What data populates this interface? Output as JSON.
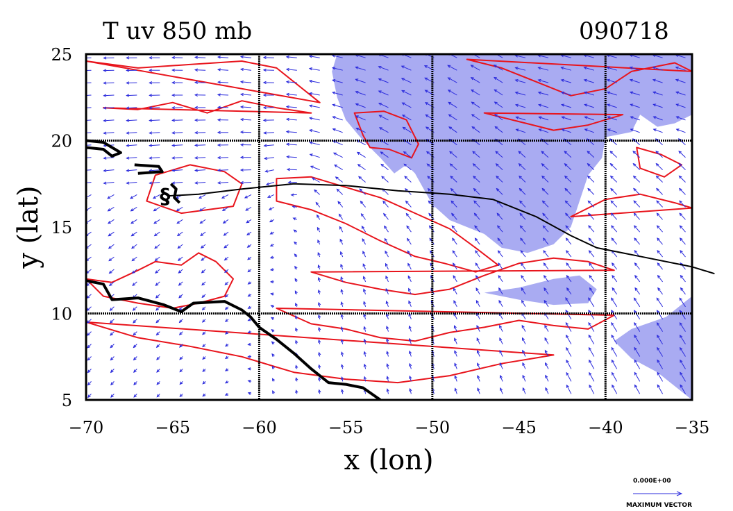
{
  "chart_data": {
    "type": "contour-vector-map",
    "title": "T uv 850 mb",
    "date_label": "090718",
    "xlabel": "x (lon)",
    "ylabel": "y (lat)",
    "xlim": [
      -70,
      -35
    ],
    "ylim": [
      5,
      25
    ],
    "x_ticks": [
      -70,
      -65,
      -60,
      -55,
      -50,
      -45,
      -40,
      -35
    ],
    "x_tick_labels": [
      "−70",
      "−65",
      "−60",
      "−55",
      "−50",
      "−45",
      "−40",
      "−35"
    ],
    "y_ticks": [
      5,
      10,
      15,
      20,
      25
    ],
    "y_tick_labels": [
      "5",
      "10",
      "15",
      "20",
      "25"
    ],
    "grid_x": [
      -60,
      -50,
      -40
    ],
    "grid_y": [
      10,
      20
    ],
    "grid": true,
    "vector_legend": {
      "value_label": "0.000E+00",
      "caption": "MAXIMUM VECTOR"
    },
    "colors": {
      "shaded_region": "#a9abf2",
      "contour": "#e8141c",
      "vector": "#2a2adc",
      "coastline": "#000000",
      "storm_track": "#000000"
    },
    "shaded_regions": [
      [
        [
          -55.5,
          25
        ],
        [
          -35,
          25
        ],
        [
          -35,
          21.5
        ],
        [
          -36,
          21
        ],
        [
          -37,
          20.8
        ],
        [
          -38,
          21.5
        ],
        [
          -38.5,
          20.5
        ],
        [
          -40,
          20.2
        ],
        [
          -40.2,
          19
        ],
        [
          -41,
          18
        ],
        [
          -41.5,
          16.5
        ],
        [
          -42,
          15
        ],
        [
          -43,
          14
        ],
        [
          -44.5,
          13.5
        ],
        [
          -46,
          13.8
        ],
        [
          -47,
          14.6
        ],
        [
          -48,
          15
        ],
        [
          -49,
          15.4
        ],
        [
          -50,
          16.3
        ],
        [
          -51,
          18.1
        ],
        [
          -51.5,
          18.6
        ],
        [
          -52.2,
          18.1
        ],
        [
          -53,
          19
        ],
        [
          -54,
          20
        ],
        [
          -55,
          21.2
        ],
        [
          -55.5,
          22.5
        ],
        [
          -55.8,
          24
        ]
      ],
      [
        [
          -47,
          11.2
        ],
        [
          -45,
          11.5
        ],
        [
          -43,
          12
        ],
        [
          -41.5,
          12.2
        ],
        [
          -40.5,
          11.4
        ],
        [
          -41,
          10.6
        ],
        [
          -43,
          10.5
        ],
        [
          -45,
          10.8
        ]
      ],
      [
        [
          -35,
          11
        ],
        [
          -36.5,
          9.8
        ],
        [
          -38.5,
          9.1
        ],
        [
          -39.5,
          8.4
        ],
        [
          -38.5,
          7.4
        ],
        [
          -37,
          6.6
        ],
        [
          -35,
          5
        ]
      ]
    ],
    "contours": [
      [
        [
          -70,
          12
        ],
        [
          -68.5,
          11.8
        ],
        [
          -67,
          12.5
        ],
        [
          -66,
          13
        ],
        [
          -64.5,
          12.8
        ],
        [
          -63.5,
          13.5
        ],
        [
          -62.5,
          13
        ],
        [
          -61.5,
          12
        ],
        [
          -62,
          11
        ],
        [
          -63.5,
          10.6
        ],
        [
          -65,
          10.3
        ],
        [
          -67,
          10.6
        ],
        [
          -69,
          11
        ]
      ],
      [
        [
          -66,
          18
        ],
        [
          -64,
          18.6
        ],
        [
          -62,
          18.2
        ],
        [
          -61,
          17.5
        ],
        [
          -61.5,
          16.2
        ],
        [
          -63,
          16
        ],
        [
          -64.5,
          15.8
        ],
        [
          -66.5,
          16.5
        ]
      ],
      [
        [
          -59,
          17.8
        ],
        [
          -57,
          17.9
        ],
        [
          -55,
          17.3
        ],
        [
          -53,
          16.7
        ],
        [
          -51,
          15.8
        ],
        [
          -49,
          14.9
        ],
        [
          -47.5,
          13.8
        ],
        [
          -46.2,
          12.8
        ],
        [
          -47.5,
          12.4
        ],
        [
          -49.3,
          12.9
        ],
        [
          -51,
          13.3
        ],
        [
          -53,
          14.2
        ],
        [
          -55,
          15.2
        ],
        [
          -57,
          16
        ],
        [
          -59,
          16.5
        ]
      ],
      [
        [
          -70,
          24.6
        ],
        [
          -67,
          24.2
        ],
        [
          -64,
          24.4
        ],
        [
          -61,
          24.6
        ],
        [
          -59,
          24.2
        ],
        [
          -58,
          23.4
        ],
        [
          -56.5,
          22.2
        ]
      ],
      [
        [
          -48,
          24.7
        ],
        [
          -46,
          24.2
        ],
        [
          -44,
          23.4
        ],
        [
          -42,
          22.6
        ],
        [
          -40,
          23
        ],
        [
          -38.5,
          24
        ],
        [
          -36,
          24.5
        ],
        [
          -35,
          24
        ]
      ],
      [
        [
          -54.5,
          21.6
        ],
        [
          -54,
          20.3
        ],
        [
          -53.6,
          19.6
        ],
        [
          -52.5,
          19.5
        ],
        [
          -51.2,
          19
        ],
        [
          -50.8,
          19.8
        ],
        [
          -51.5,
          21.2
        ],
        [
          -52.8,
          21.7
        ]
      ],
      [
        [
          -57,
          12.4
        ],
        [
          -55,
          11.8
        ],
        [
          -53,
          11.4
        ],
        [
          -51,
          11.1
        ],
        [
          -49,
          11.4
        ],
        [
          -47,
          12.2
        ],
        [
          -45,
          12.9
        ],
        [
          -43,
          13.2
        ],
        [
          -41,
          13
        ],
        [
          -39.5,
          12.5
        ]
      ],
      [
        [
          -70,
          9.5
        ],
        [
          -67,
          8.6
        ],
        [
          -64,
          8.1
        ],
        [
          -61,
          7.5
        ],
        [
          -58,
          6.6
        ],
        [
          -55,
          6.2
        ],
        [
          -52,
          6
        ],
        [
          -49,
          6.4
        ],
        [
          -46,
          7.1
        ],
        [
          -43,
          7.6
        ]
      ],
      [
        [
          -59,
          10.3
        ],
        [
          -57,
          9.4
        ],
        [
          -55,
          9.1
        ],
        [
          -53,
          8.6
        ],
        [
          -51,
          8.4
        ],
        [
          -49,
          8.9
        ],
        [
          -47,
          9.2
        ],
        [
          -45,
          9.6
        ],
        [
          -43,
          9.3
        ],
        [
          -41,
          9.1
        ],
        [
          -39.5,
          9.9
        ]
      ],
      [
        [
          -42,
          15.6
        ],
        [
          -40,
          16.6
        ],
        [
          -38,
          16.9
        ],
        [
          -36,
          16.4
        ],
        [
          -35,
          16.1
        ]
      ],
      [
        [
          -69,
          21.9
        ],
        [
          -67,
          21.8
        ],
        [
          -65,
          22.2
        ],
        [
          -63,
          21.6
        ],
        [
          -61,
          22.3
        ],
        [
          -59,
          21.9
        ],
        [
          -57,
          21.6
        ]
      ],
      [
        [
          -47,
          21.6
        ],
        [
          -45,
          21.1
        ],
        [
          -43,
          20.6
        ],
        [
          -41,
          20.9
        ],
        [
          -39,
          21.5
        ]
      ],
      [
        [
          -38.2,
          19.6
        ],
        [
          -36.8,
          19.2
        ],
        [
          -35.6,
          18.6
        ],
        [
          -36.6,
          17.9
        ],
        [
          -38,
          18.4
        ]
      ]
    ],
    "coastline_segments": [
      [
        [
          -70,
          19.6
        ],
        [
          -69,
          19.5
        ],
        [
          -68.5,
          19.1
        ],
        [
          -68,
          19.3
        ],
        [
          -69,
          19.9
        ],
        [
          -70,
          20
        ]
      ],
      [
        [
          -67.2,
          18.6
        ],
        [
          -65.8,
          18.5
        ],
        [
          -65.6,
          18.2
        ],
        [
          -67,
          18.1
        ]
      ],
      [
        [
          -70,
          11.9
        ],
        [
          -69,
          11.7
        ],
        [
          -68.5,
          10.8
        ],
        [
          -67,
          10.9
        ],
        [
          -65.5,
          10.5
        ],
        [
          -64.5,
          10.1
        ],
        [
          -63.8,
          10.6
        ],
        [
          -62,
          10.7
        ],
        [
          -61,
          10.2
        ],
        [
          -60.5,
          9.8
        ],
        [
          -60,
          9.2
        ],
        [
          -59,
          8.5
        ],
        [
          -58,
          7.7
        ],
        [
          -57,
          6.8
        ],
        [
          -56,
          6
        ],
        [
          -55,
          5.9
        ],
        [
          -54,
          5.7
        ],
        [
          -53,
          5
        ]
      ],
      [
        [
          -65.1,
          17.5
        ],
        [
          -64.8,
          17.2
        ],
        [
          -64.9,
          16.7
        ],
        [
          -64.6,
          16.4
        ]
      ]
    ],
    "storm_track": [
      [
        -65.3,
        16.8
      ],
      [
        -63.5,
        16.9
      ],
      [
        -61,
        17.2
      ],
      [
        -58,
        17.5
      ],
      [
        -55,
        17.4
      ],
      [
        -52,
        17.1
      ],
      [
        -49,
        16.9
      ],
      [
        -46.5,
        16.6
      ],
      [
        -44,
        15.6
      ],
      [
        -42,
        14.5
      ],
      [
        -40.5,
        13.8
      ],
      [
        -38,
        13.3
      ],
      [
        -35,
        12.7
      ],
      [
        -33.7,
        12.3
      ]
    ]
  }
}
